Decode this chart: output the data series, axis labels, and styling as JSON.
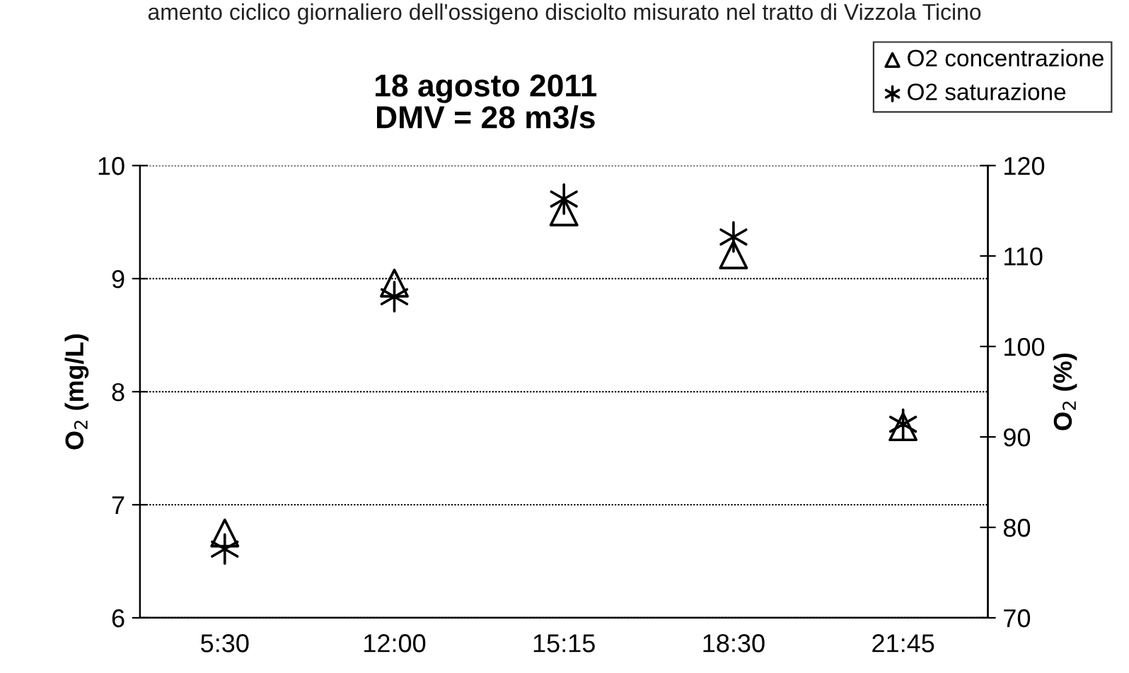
{
  "chart_data": {
    "type": "scatter",
    "title": "18 agosto 2011\nDMV = 28 m3/s",
    "annotations": [
      "amento ciclico giornaliero dell'ossigeno disciolto misurato nel tratto di Vizzola Ticino"
    ],
    "categories": [
      "5:30",
      "12:00",
      "15:15",
      "18:30",
      "21:45"
    ],
    "series": [
      {
        "name": "O2 concentrazione",
        "color": "#000000",
        "marker": "triangle",
        "values": [
          6.75,
          8.96,
          9.59,
          9.21,
          7.69
        ]
      },
      {
        "name": "O2 saturazione",
        "color": "#000000",
        "marker": "cross",
        "axis": "y2",
        "values": [
          77.6,
          105.5,
          116.3,
          112.1,
          91.4
        ]
      }
    ],
    "ylabel": "O$_{2}$ (mg/L)",
    "y2label": "O$_{2}$ (%)",
    "ylim": [
      6,
      10
    ],
    "yticks": [
      6,
      7,
      8,
      9,
      10
    ],
    "y2lim": [
      70,
      120
    ],
    "y2ticks": [
      70,
      80,
      90,
      100,
      110,
      120
    ],
    "grid": "y",
    "legend": "top right"
  }
}
